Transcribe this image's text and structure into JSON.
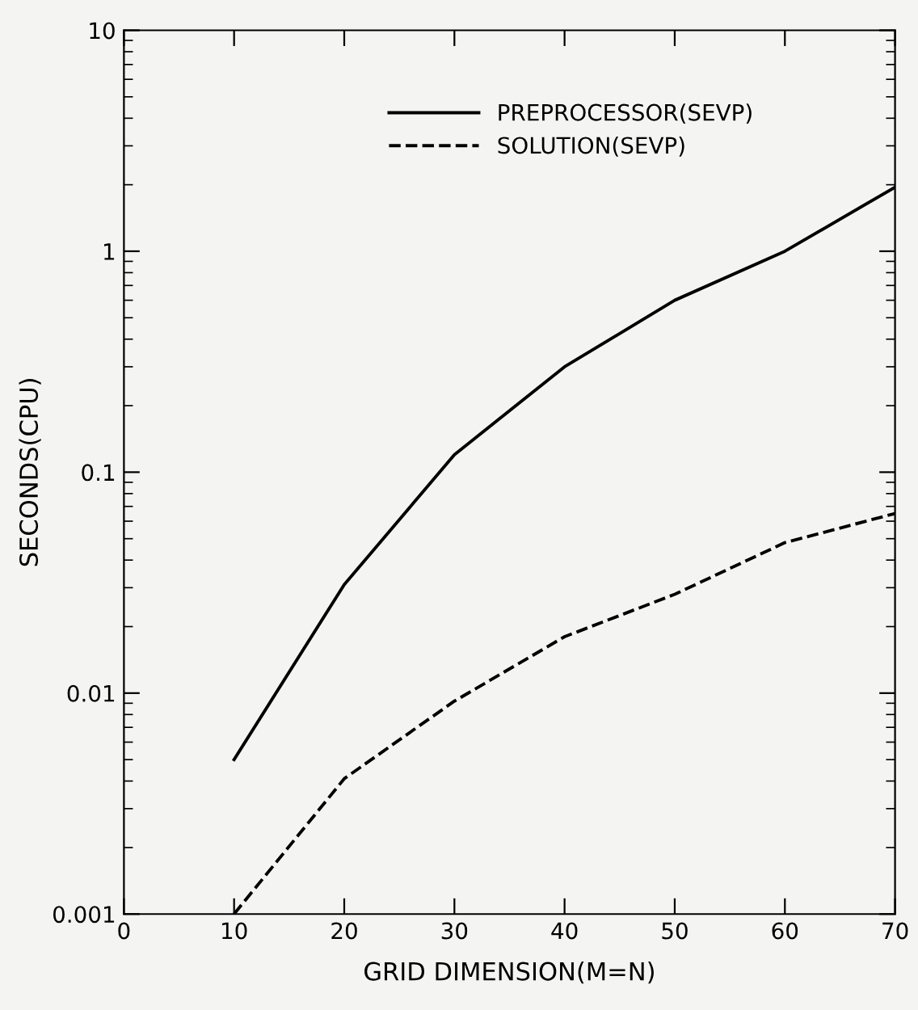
{
  "chart_data": {
    "type": "line",
    "xlabel": "GRID DIMENSION(M=N)",
    "ylabel": "SECONDS(CPU)",
    "x": [
      10,
      20,
      30,
      40,
      50,
      60,
      70
    ],
    "series": [
      {
        "name": "PREPROCESSOR(SEVP)",
        "color": "#000000",
        "line_style": "solid",
        "values": [
          0.005,
          0.031,
          0.12,
          0.3,
          0.6,
          1.0,
          1.95
        ]
      },
      {
        "name": "SOLUTION(SEVP)",
        "color": "#000000",
        "line_style": "dashed",
        "values": [
          0.001,
          0.0041,
          0.0092,
          0.018,
          0.028,
          0.048,
          0.065
        ]
      }
    ],
    "log": "y",
    "xlim": [
      0,
      70
    ],
    "xticks": [
      0,
      10,
      20,
      30,
      40,
      50,
      60,
      70
    ],
    "ylim": [
      0.001,
      10
    ],
    "yticks": [
      0.001,
      0.01,
      0.1,
      1,
      10
    ],
    "legend": "top",
    "grid": false,
    "marker": "none"
  }
}
